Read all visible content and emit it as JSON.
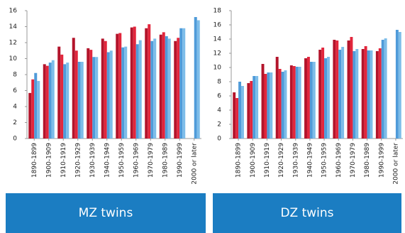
{
  "chart_data": [
    {
      "type": "bar",
      "title": "MZ twins",
      "categories": [
        "1890-1899",
        "1900-1909",
        "1910-1919",
        "1920-1929",
        "1930-1939",
        "1940-1949",
        "1950-1959",
        "1960-1969",
        "1970-1979",
        "1980-1989",
        "1990-1999",
        "2000 or later"
      ],
      "series": [
        {
          "color": "#b3142b",
          "values": [
            5.7,
            9.3,
            11.5,
            12.6,
            11.3,
            12.5,
            13.1,
            13.9,
            13.8,
            13.0,
            12.2,
            null
          ]
        },
        {
          "color": "#e2263c",
          "values": [
            7.4,
            9.1,
            10.5,
            11.0,
            11.1,
            12.2,
            13.2,
            14.0,
            14.3,
            13.3,
            12.6,
            null
          ]
        },
        {
          "color": "#4f9bd9",
          "values": [
            8.2,
            9.5,
            9.3,
            9.6,
            10.2,
            10.8,
            11.4,
            11.8,
            12.2,
            12.8,
            13.8,
            15.2
          ]
        },
        {
          "color": "#7dbde9",
          "values": [
            7.2,
            9.8,
            9.5,
            9.6,
            10.2,
            11.0,
            11.5,
            12.3,
            12.5,
            12.5,
            13.8,
            14.8
          ]
        }
      ],
      "ylim": [
        0,
        16
      ],
      "yticks": [
        0,
        2,
        4,
        6,
        8,
        10,
        12,
        14,
        16
      ]
    },
    {
      "type": "bar",
      "title": "DZ twins",
      "categories": [
        "1890-1899",
        "1900-1909",
        "1910-1919",
        "1920-1929",
        "1930-1939",
        "1940-1949",
        "1950-1959",
        "1960-1969",
        "1970-1979",
        "1980-1989",
        "1990-1999",
        "2000 or later"
      ],
      "series": [
        {
          "color": "#b3142b",
          "values": [
            6.5,
            7.8,
            10.5,
            11.5,
            10.3,
            11.3,
            12.5,
            13.9,
            13.8,
            12.6,
            12.3,
            null
          ]
        },
        {
          "color": "#e2263c",
          "values": [
            5.7,
            8.1,
            9.1,
            9.8,
            10.2,
            11.5,
            12.8,
            13.8,
            14.3,
            13.0,
            12.7,
            null
          ]
        },
        {
          "color": "#4f9bd9",
          "values": [
            8.0,
            8.8,
            9.3,
            9.4,
            10.1,
            10.8,
            11.3,
            12.5,
            12.3,
            12.4,
            13.9,
            15.3
          ]
        },
        {
          "color": "#7dbde9",
          "values": [
            7.4,
            8.8,
            9.3,
            9.6,
            10.1,
            10.8,
            11.5,
            12.9,
            12.6,
            12.4,
            14.1,
            15.0
          ]
        }
      ],
      "ylim": [
        0,
        18
      ],
      "yticks": [
        0,
        2,
        4,
        6,
        8,
        10,
        12,
        14,
        16,
        18
      ]
    }
  ]
}
